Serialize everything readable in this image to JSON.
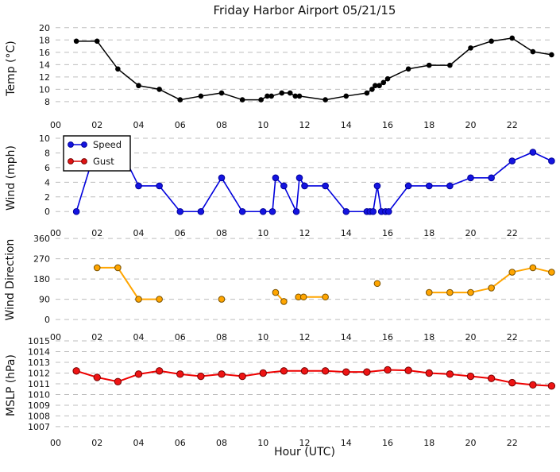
{
  "figure": {
    "title": "Friday Harbor Airport 05/21/15",
    "xlabel": "Hour (UTC)",
    "x_tick_labels": [
      "00",
      "02",
      "04",
      "06",
      "08",
      "10",
      "12",
      "14",
      "16",
      "18",
      "20",
      "22"
    ],
    "background": "#ffffff",
    "grid_color": "#bdbdbd",
    "text_color": "#111111"
  },
  "chart_data": [
    {
      "type": "line",
      "name": "temp",
      "ylabel": "Temp (°C)",
      "xlabel": "",
      "xlim": [
        0,
        24
      ],
      "ylim": [
        5.8,
        21.0
      ],
      "yticks": [
        8,
        10,
        12,
        14,
        16,
        18,
        20
      ],
      "xticks": [
        0,
        2,
        4,
        6,
        8,
        10,
        12,
        14,
        16,
        18,
        20,
        22
      ],
      "grid": "horizontal-dashed",
      "legend_position": "none",
      "series": [
        {
          "name": "Temperature",
          "color": "#000000",
          "marker_fill": "#000000",
          "marker_edge": "#000000",
          "marker_r": 2.8,
          "line_width": 1.5,
          "segments": [
            [
              [
                1,
                17.8
              ],
              [
                2,
                17.8
              ],
              [
                3,
                13.3
              ],
              [
                4,
                10.6
              ],
              [
                5,
                10.0
              ],
              [
                6,
                8.3
              ],
              [
                7,
                8.9
              ],
              [
                8,
                9.4
              ],
              [
                9,
                8.3
              ],
              [
                9.9,
                8.3
              ],
              [
                10.2,
                8.9
              ],
              [
                10.4,
                8.9
              ],
              [
                10.9,
                9.4
              ],
              [
                11.3,
                9.4
              ],
              [
                11.55,
                8.9
              ],
              [
                11.75,
                8.9
              ],
              [
                13,
                8.3
              ],
              [
                14,
                8.9
              ],
              [
                15,
                9.4
              ],
              [
                15.25,
                10.0
              ],
              [
                15.4,
                10.6
              ],
              [
                15.6,
                10.6
              ],
              [
                15.8,
                11.1
              ],
              [
                16,
                11.7
              ],
              [
                17,
                13.3
              ],
              [
                18,
                13.9
              ],
              [
                19,
                13.9
              ],
              [
                20,
                16.7
              ],
              [
                21,
                17.8
              ],
              [
                22,
                18.3
              ],
              [
                23,
                16.1
              ],
              [
                23.9,
                15.6
              ]
            ]
          ]
        }
      ]
    },
    {
      "type": "line",
      "name": "wind",
      "ylabel": "Wind (mph)",
      "xlabel": "",
      "xlim": [
        0,
        24
      ],
      "ylim": [
        -1.6,
        10.65
      ],
      "yticks": [
        0,
        2,
        4,
        6,
        8,
        10
      ],
      "xticks": [
        0,
        2,
        4,
        6,
        8,
        10,
        12,
        14,
        16,
        18,
        20,
        22
      ],
      "grid": "horizontal-dashed",
      "legend_position": "upper-left",
      "legend": {
        "entries": [
          {
            "label": "Speed",
            "color": "#0000dd",
            "marker_fill": "#1414e0",
            "marker_edge": "#000099"
          },
          {
            "label": "Gust",
            "color": "#dd0000",
            "marker_fill": "#e01414",
            "marker_edge": "#770000"
          }
        ]
      },
      "series": [
        {
          "name": "Speed",
          "color": "#0000dd",
          "marker_fill": "#1414e0",
          "marker_edge": "#000099",
          "marker_r": 3.8,
          "line_width": 1.6,
          "segments": [
            [
              [
                1,
                0
              ],
              [
                2,
                9.2
              ],
              [
                3,
                9.2
              ],
              [
                4,
                3.5
              ],
              [
                5,
                3.5
              ],
              [
                6,
                0
              ],
              [
                7,
                0
              ],
              [
                8,
                4.6
              ],
              [
                9,
                0
              ],
              [
                10,
                0
              ],
              [
                10.45,
                0
              ],
              [
                10.6,
                4.6
              ],
              [
                11,
                3.5
              ],
              [
                11.6,
                0
              ],
              [
                11.75,
                4.6
              ],
              [
                12,
                3.5
              ],
              [
                13,
                3.5
              ],
              [
                14,
                0
              ],
              [
                15,
                0
              ],
              [
                15.15,
                0
              ],
              [
                15.3,
                0
              ],
              [
                15.5,
                3.5
              ],
              [
                15.7,
                0
              ],
              [
                15.9,
                0
              ],
              [
                16.05,
                0
              ],
              [
                17,
                3.5
              ],
              [
                18,
                3.5
              ],
              [
                19,
                3.5
              ],
              [
                20,
                4.6
              ],
              [
                21,
                4.6
              ],
              [
                22,
                6.9
              ],
              [
                23,
                8.1
              ],
              [
                23.9,
                6.9
              ]
            ]
          ]
        },
        {
          "name": "Gust",
          "color": "#dd0000",
          "marker_fill": "#e01414",
          "marker_edge": "#770000",
          "marker_r": 3.8,
          "line_width": 1.6,
          "segments": []
        }
      ]
    },
    {
      "type": "line",
      "name": "wind-direction",
      "ylabel": "Wind Direction",
      "xlabel": "",
      "xlim": [
        0,
        24
      ],
      "ylim": [
        -35,
        385
      ],
      "yticks": [
        0,
        90,
        180,
        270,
        360
      ],
      "xticks": [
        0,
        2,
        4,
        6,
        8,
        10,
        12,
        14,
        16,
        18,
        20,
        22
      ],
      "grid": "horizontal-dashed",
      "legend_position": "none",
      "series": [
        {
          "name": "Direction",
          "color": "#ffa500",
          "marker_fill": "#ffa500",
          "marker_edge": "#7a5200",
          "marker_r": 3.8,
          "line_width": 2,
          "segments": [
            [
              [
                2,
                230
              ],
              [
                3,
                230
              ],
              [
                4,
                90
              ],
              [
                5,
                90
              ]
            ],
            [
              [
                8,
                90
              ]
            ],
            [
              [
                10.6,
                120
              ],
              [
                11,
                80
              ]
            ],
            [
              [
                11.7,
                100
              ],
              [
                11.95,
                100
              ],
              [
                13,
                100
              ]
            ],
            [
              [
                15.5,
                160
              ]
            ],
            [
              [
                18,
                120
              ],
              [
                19,
                120
              ],
              [
                20,
                120
              ],
              [
                21,
                140
              ],
              [
                22,
                210
              ],
              [
                23,
                230
              ],
              [
                23.9,
                210
              ]
            ]
          ]
        }
      ]
    },
    {
      "type": "line",
      "name": "mslp",
      "ylabel": "MSLP (hPa)",
      "xlabel": "Hour (UTC)",
      "xlim": [
        0,
        24
      ],
      "ylim": [
        1006.4,
        1015.3
      ],
      "yticks": [
        1007,
        1008,
        1009,
        1010,
        1011,
        1012,
        1013,
        1014,
        1015
      ],
      "xticks": [
        0,
        2,
        4,
        6,
        8,
        10,
        12,
        14,
        16,
        18,
        20,
        22
      ],
      "grid": "horizontal-dashed",
      "legend_position": "none",
      "series": [
        {
          "name": "Pressure",
          "color": "#ee0000",
          "marker_fill": "#ee1414",
          "marker_edge": "#770000",
          "marker_r": 4.2,
          "line_width": 2,
          "segments": [
            [
              [
                1,
                1012.2
              ],
              [
                2,
                1011.6
              ],
              [
                3,
                1011.2
              ],
              [
                4,
                1011.9
              ],
              [
                5,
                1012.2
              ],
              [
                6,
                1011.9
              ],
              [
                7,
                1011.7
              ],
              [
                8,
                1011.9
              ],
              [
                9,
                1011.7
              ],
              [
                10,
                1012.0
              ],
              [
                11,
                1012.2
              ],
              [
                12,
                1012.2
              ],
              [
                13,
                1012.2
              ],
              [
                14,
                1012.1
              ],
              [
                15,
                1012.1
              ],
              [
                16,
                1012.3
              ],
              [
                17,
                1012.25
              ],
              [
                18,
                1012.0
              ],
              [
                19,
                1011.9
              ],
              [
                20,
                1011.7
              ],
              [
                21,
                1011.5
              ],
              [
                22,
                1011.1
              ],
              [
                23,
                1010.9
              ],
              [
                23.9,
                1010.8
              ]
            ]
          ]
        }
      ]
    }
  ]
}
